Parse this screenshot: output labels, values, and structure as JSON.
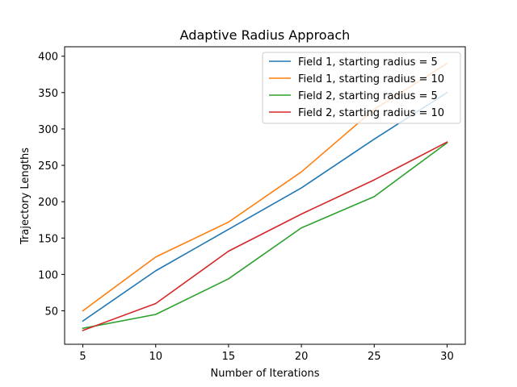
{
  "chart_data": {
    "type": "line",
    "title": "Adaptive Radius Approach",
    "xlabel": "Number of Iterations",
    "ylabel": "Trajectory Lengths",
    "x": [
      5,
      10,
      15,
      20,
      25,
      30
    ],
    "xlim": [
      3.75,
      31.25
    ],
    "ylim": [
      4,
      413
    ],
    "xticks": [
      5,
      10,
      15,
      20,
      25,
      30
    ],
    "yticks": [
      50,
      100,
      150,
      200,
      250,
      300,
      350,
      400
    ],
    "grid": false,
    "legend_position": "top-right",
    "series": [
      {
        "name": "Field 1, starting radius = 5",
        "color": "#1f77b4",
        "values": [
          36,
          105,
          162,
          219,
          286,
          350
        ]
      },
      {
        "name": "Field 1, starting radius = 10",
        "color": "#ff7f0e",
        "values": [
          50,
          124,
          172,
          241,
          327,
          390
        ]
      },
      {
        "name": "Field 2, starting radius = 5",
        "color": "#2ca02c",
        "values": [
          26,
          45,
          94,
          164,
          207,
          281
        ]
      },
      {
        "name": "Field 2, starting radius = 10",
        "color": "#d62728",
        "values": [
          23,
          60,
          132,
          183,
          230,
          282
        ]
      }
    ]
  }
}
